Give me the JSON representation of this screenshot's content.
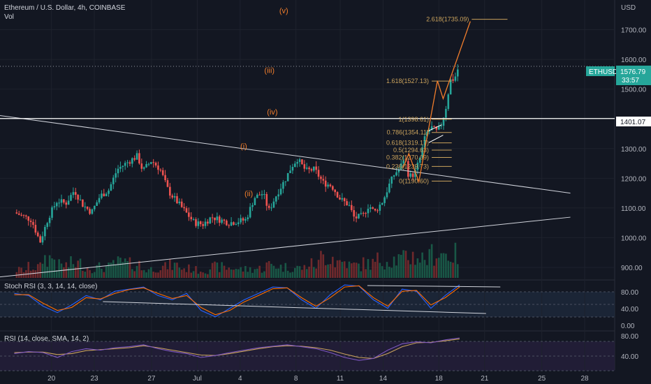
{
  "header": {
    "symbol_title": "Ethereum / U.S. Dollar, 4h, COINBASE",
    "volume_label": "Vol",
    "currency": "USD"
  },
  "price_tags": {
    "symbol": "ETHUSD",
    "last_price": "1576.79",
    "countdown": "33:57",
    "line_level": "1401.07",
    "colors": {
      "last": "#26a69a",
      "line": "#ffffff"
    }
  },
  "fib_levels": [
    {
      "label": "2.618(1735.09)",
      "price": 1735.09
    },
    {
      "label": "1.618(1527.13)",
      "price": 1527.13
    },
    {
      "label": "1(1398.61)",
      "price": 1398.61
    },
    {
      "label": "0.786(1354.11)",
      "price": 1354.11
    },
    {
      "label": "0.618(1319.17)",
      "price": 1319.17
    },
    {
      "label": "0.5(1294.63)",
      "price": 1294.63
    },
    {
      "label": "0.382(1270.09)",
      "price": 1270.09
    },
    {
      "label": "0.236(1239.73)",
      "price": 1239.73
    },
    {
      "label": "0(1190.60)",
      "price": 1190.6
    }
  ],
  "wave_labels": [
    {
      "label": "(v)",
      "x": 18.85,
      "y": 1755
    },
    {
      "label": "(iii)",
      "x": 17.85,
      "y": 1555
    },
    {
      "label": "(iv)",
      "x": 18.05,
      "y": 1415
    },
    {
      "label": "(i)",
      "x": 16.05,
      "y": 1300
    },
    {
      "label": "(ii)",
      "x": 16.4,
      "y": 1140
    }
  ],
  "panes": {
    "stoch_rsi": {
      "title": "Stoch RSI (3, 3, 14, 14, close)",
      "ticks": [
        "80.00",
        "40.00",
        "0.00"
      ]
    },
    "rsi": {
      "title": "RSI (14, close, SMA, 14, 2)",
      "ticks": [
        "80.00",
        "40.00"
      ]
    }
  },
  "chart_data": {
    "type": "candlestick",
    "title": "Ethereum / U.S. Dollar, 4h, COINBASE",
    "ylabel": "USD",
    "y_ticks": [
      900,
      1000,
      1100,
      1200,
      1300,
      1400,
      1500,
      1600,
      1700
    ],
    "x_ticks": [
      "20",
      "23",
      "27",
      "Jul",
      "4",
      "8",
      "11",
      "14",
      "18",
      "21",
      "25",
      "28"
    ],
    "x_tick_pos": [
      2.6,
      5.6,
      9.6,
      12.8,
      15.8,
      19.7,
      22.8,
      25.8,
      29.7,
      32.9,
      36.9,
      39.9
    ],
    "ylim": [
      860,
      1800
    ],
    "price_path": [
      [
        0,
        1085
      ],
      [
        1.2,
        1060
      ],
      [
        1.8,
        985
      ],
      [
        2.4,
        1070
      ],
      [
        3,
        1125
      ],
      [
        3.6,
        1115
      ],
      [
        4.2,
        1160
      ],
      [
        4.8,
        1110
      ],
      [
        5.4,
        1085
      ],
      [
        6.0,
        1140
      ],
      [
        6.6,
        1160
      ],
      [
        7.2,
        1230
      ],
      [
        7.8,
        1250
      ],
      [
        8.6,
        1275
      ],
      [
        9.0,
        1225
      ],
      [
        9.6,
        1260
      ],
      [
        10.2,
        1230
      ],
      [
        10.8,
        1155
      ],
      [
        11.4,
        1120
      ],
      [
        12.0,
        1085
      ],
      [
        12.6,
        1050
      ],
      [
        13.2,
        1045
      ],
      [
        13.8,
        1070
      ],
      [
        14.4,
        1060
      ],
      [
        15.0,
        1050
      ],
      [
        15.6,
        1055
      ],
      [
        16.2,
        1060
      ],
      [
        16.8,
        1135
      ],
      [
        17.4,
        1150
      ],
      [
        17.8,
        1090
      ],
      [
        18.4,
        1150
      ],
      [
        19.0,
        1200
      ],
      [
        19.4,
        1240
      ],
      [
        19.8,
        1265
      ],
      [
        20.4,
        1225
      ],
      [
        21.0,
        1230
      ],
      [
        21.6,
        1185
      ],
      [
        22.2,
        1175
      ],
      [
        22.8,
        1130
      ],
      [
        23.4,
        1110
      ],
      [
        23.8,
        1065
      ],
      [
        24.4,
        1075
      ],
      [
        24.8,
        1110
      ],
      [
        25.2,
        1085
      ],
      [
        25.8,
        1125
      ],
      [
        26.2,
        1175
      ],
      [
        26.6,
        1215
      ],
      [
        27.0,
        1235
      ],
      [
        27.3,
        1275
      ],
      [
        27.6,
        1205
      ],
      [
        28.0,
        1215
      ],
      [
        28.4,
        1270
      ],
      [
        28.8,
        1350
      ],
      [
        29.2,
        1370
      ],
      [
        29.6,
        1355
      ],
      [
        29.9,
        1385
      ],
      [
        30.2,
        1440
      ],
      [
        30.5,
        1530
      ],
      [
        30.8,
        1535
      ],
      [
        31.0,
        1565
      ],
      [
        31.15,
        1576.79
      ]
    ],
    "trendlines": [
      {
        "x0": -1.0,
        "y0": 1411,
        "x1": 38.9,
        "y1": 1150
      },
      {
        "x0": -1.0,
        "y0": 868,
        "x1": 38.9,
        "y1": 1069
      },
      {
        "x0": -1.0,
        "y0": 1401.07,
        "x1": 42.0,
        "y1": 1401.07
      }
    ],
    "wave_path": [
      [
        27.2,
        1235
      ],
      [
        27.6,
        1283
      ],
      [
        28.3,
        1188
      ],
      [
        29.6,
        1528
      ],
      [
        30.0,
        1468
      ],
      [
        31.9,
        1728
      ]
    ],
    "last_price": 1576.79,
    "stoch_rsi_k": [
      75,
      70,
      45,
      30,
      48,
      70,
      60,
      80,
      85,
      90,
      70,
      60,
      75,
      35,
      20,
      40,
      60,
      75,
      90,
      88,
      60,
      40,
      72,
      95,
      92,
      60,
      40,
      85,
      80,
      40,
      70,
      95
    ],
    "stoch_rsi_d": [
      72,
      72,
      52,
      35,
      42,
      65,
      62,
      75,
      84,
      88,
      75,
      63,
      70,
      42,
      25,
      35,
      55,
      70,
      86,
      88,
      65,
      45,
      65,
      90,
      93,
      65,
      45,
      80,
      82,
      48,
      65,
      90
    ],
    "rsi": [
      48,
      52,
      50,
      40,
      52,
      58,
      55,
      60,
      62,
      66,
      58,
      52,
      48,
      40,
      44,
      50,
      55,
      60,
      63,
      66,
      62,
      58,
      50,
      40,
      34,
      38,
      55,
      68,
      72,
      70,
      76,
      80
    ],
    "rsi_sma": [
      50,
      51,
      51,
      46,
      48,
      54,
      56,
      58,
      60,
      64,
      60,
      55,
      50,
      45,
      44,
      48,
      53,
      58,
      62,
      64,
      63,
      60,
      55,
      47,
      40,
      38,
      48,
      62,
      70,
      71,
      74,
      78
    ],
    "volume": [
      22,
      30,
      55,
      35,
      40,
      28,
      30,
      42,
      38,
      24,
      30,
      35,
      26,
      22,
      30,
      28,
      24,
      26,
      36,
      30,
      28,
      38,
      60,
      45,
      35,
      40,
      50,
      52,
      60,
      55,
      70,
      65
    ]
  }
}
